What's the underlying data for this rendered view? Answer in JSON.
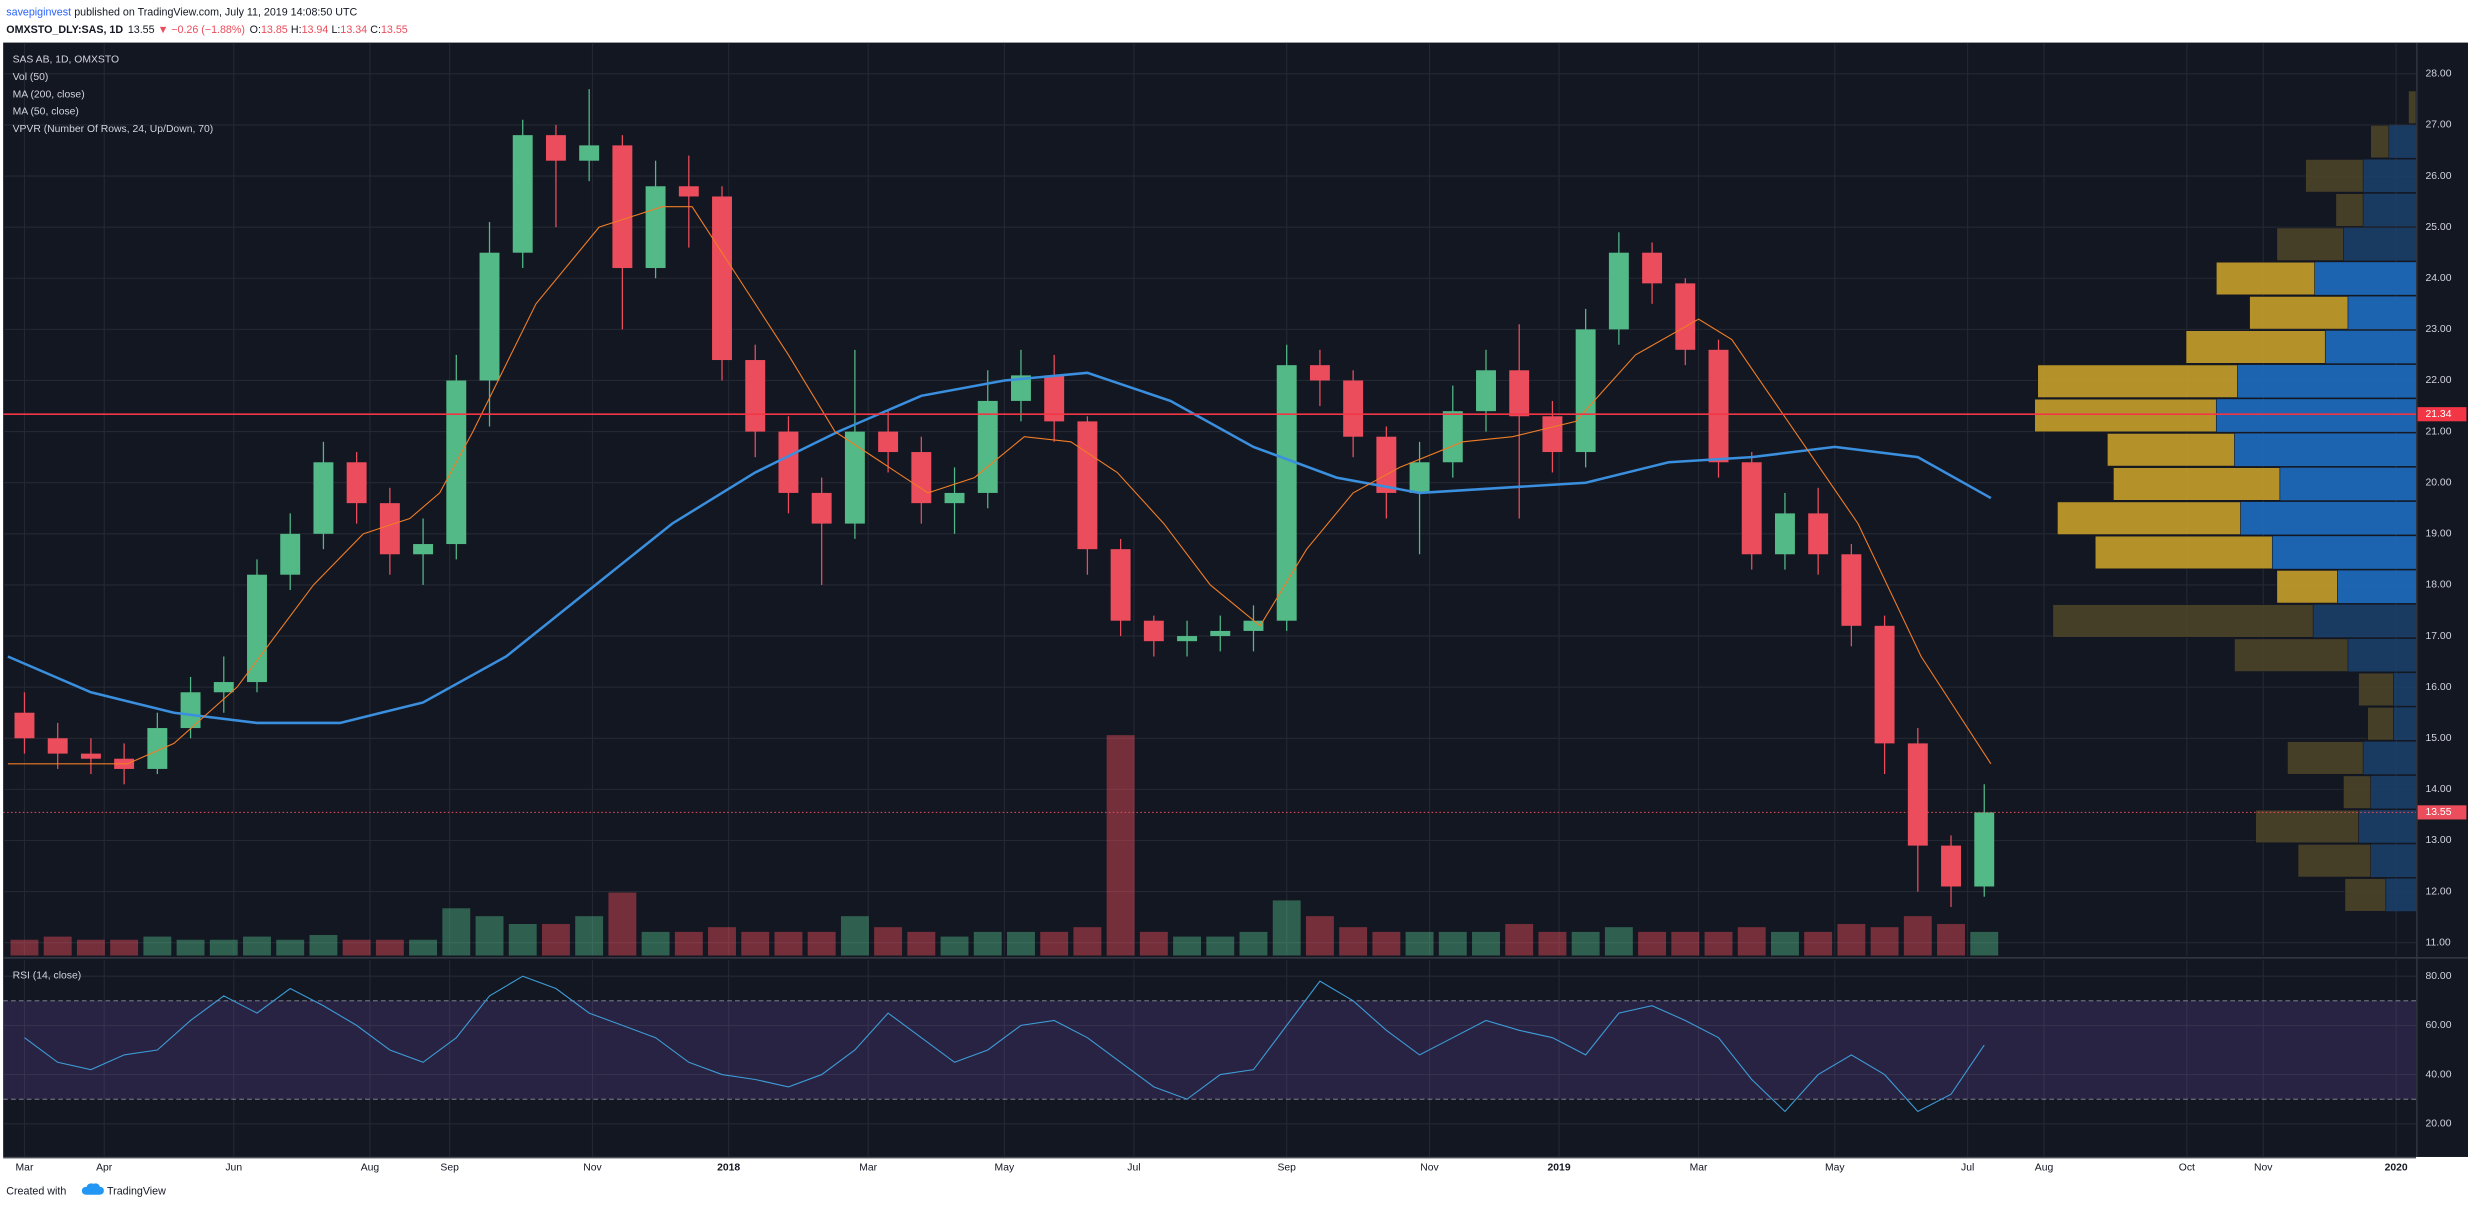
{
  "header": {
    "author": "savepiginvest",
    "published": "published on TradingView.com, July 11, 2019 14:08:50 UTC",
    "symbol": "OMXSTO_DLY:SAS, 1D",
    "last": "13.55",
    "change": "▼ −0.26 (−1.88%)",
    "o_label": "O:",
    "o": "13.85",
    "h_label": "H:",
    "h": "13.94",
    "l_label": "L:",
    "l": "13.34",
    "c_label": "C:",
    "c": "13.55"
  },
  "chart_data": {
    "type": "candlestick",
    "title": "SAS AB, 1D, OMXSTO",
    "x": [
      5,
      15,
      25,
      35,
      45,
      55,
      65,
      75,
      85,
      95,
      105,
      115,
      125,
      135,
      145,
      155,
      165,
      175,
      185,
      195,
      205,
      215,
      225,
      235,
      245,
      255,
      265,
      275,
      285,
      295,
      305,
      315,
      325,
      335,
      345,
      355,
      365,
      375,
      385,
      395,
      405,
      415,
      425,
      435,
      445,
      455,
      465,
      475,
      485,
      495,
      505,
      515,
      525,
      535,
      545,
      555,
      565,
      575,
      585,
      595
    ],
    "open": [
      15.5,
      15.0,
      14.7,
      14.6,
      14.4,
      15.2,
      15.9,
      16.1,
      18.2,
      19.0,
      20.4,
      19.6,
      18.6,
      18.8,
      22.0,
      24.5,
      26.8,
      26.3,
      26.6,
      24.2,
      25.8,
      25.6,
      22.4,
      21.0,
      19.8,
      19.2,
      21.0,
      20.6,
      19.6,
      19.8,
      21.6,
      22.1,
      21.2,
      18.7,
      17.3,
      16.9,
      17.0,
      17.1,
      17.3,
      22.3,
      22.0,
      20.9,
      19.8,
      20.4,
      21.4,
      22.2,
      21.3,
      20.6,
      23.0,
      24.5,
      23.9,
      22.6,
      20.4,
      18.6,
      19.4,
      18.6,
      17.2,
      14.9,
      12.9,
      12.1
    ],
    "high": [
      15.9,
      15.3,
      15.0,
      14.9,
      15.5,
      16.2,
      16.6,
      18.5,
      19.4,
      20.8,
      20.6,
      19.9,
      19.3,
      22.5,
      25.1,
      27.1,
      27.0,
      27.7,
      26.8,
      26.3,
      26.4,
      25.8,
      22.7,
      21.3,
      20.1,
      22.6,
      21.4,
      20.9,
      20.3,
      22.2,
      22.6,
      22.5,
      21.3,
      18.9,
      17.4,
      17.3,
      17.4,
      17.6,
      22.7,
      22.6,
      22.2,
      21.1,
      20.8,
      21.9,
      22.6,
      23.1,
      21.6,
      23.4,
      24.9,
      24.7,
      24.0,
      22.8,
      20.6,
      19.8,
      19.9,
      18.8,
      17.4,
      15.2,
      13.1,
      14.1
    ],
    "low": [
      14.7,
      14.4,
      14.3,
      14.1,
      14.3,
      15.0,
      15.5,
      15.9,
      17.9,
      18.7,
      19.2,
      18.2,
      18.0,
      18.5,
      21.1,
      24.2,
      25.0,
      25.9,
      23.0,
      24.0,
      24.6,
      22.0,
      20.5,
      19.4,
      18.0,
      18.9,
      20.2,
      19.2,
      19.0,
      19.5,
      21.2,
      20.8,
      18.2,
      17.0,
      16.6,
      16.6,
      16.7,
      16.7,
      17.1,
      21.5,
      20.5,
      19.3,
      18.6,
      20.1,
      21.0,
      19.3,
      20.2,
      20.3,
      22.7,
      23.5,
      22.3,
      20.1,
      18.3,
      18.3,
      18.2,
      16.8,
      14.3,
      12.0,
      11.7,
      11.9
    ],
    "close": [
      15.0,
      14.7,
      14.6,
      14.4,
      15.2,
      15.9,
      16.1,
      18.2,
      19.0,
      20.4,
      19.6,
      18.6,
      18.8,
      22.0,
      24.5,
      26.8,
      26.3,
      26.6,
      24.2,
      25.8,
      25.6,
      22.4,
      21.0,
      19.8,
      19.2,
      21.0,
      20.6,
      19.6,
      19.8,
      21.6,
      22.1,
      21.2,
      18.7,
      17.3,
      16.9,
      17.0,
      17.1,
      17.3,
      22.3,
      22.0,
      20.9,
      19.8,
      20.4,
      21.4,
      22.2,
      21.3,
      20.6,
      23.0,
      24.5,
      23.9,
      22.6,
      20.4,
      18.6,
      19.4,
      18.6,
      17.2,
      14.9,
      12.9,
      12.1,
      13.55
    ],
    "up_color": "#53b987",
    "down_color": "#eb4d5c",
    "xlim": [
      0,
      725
    ],
    "xticks": [
      {
        "value": 5,
        "label": "Mar"
      },
      {
        "value": 29,
        "label": "Apr"
      },
      {
        "value": 68,
        "label": "Jun"
      },
      {
        "value": 109,
        "label": "Aug"
      },
      {
        "value": 133,
        "label": "Sep"
      },
      {
        "value": 176,
        "label": "Nov"
      },
      {
        "value": 217,
        "label": "2018"
      },
      {
        "value": 259,
        "label": "Mar"
      },
      {
        "value": 300,
        "label": "May"
      },
      {
        "value": 339,
        "label": "Jul"
      },
      {
        "value": 385,
        "label": "Sep"
      },
      {
        "value": 428,
        "label": "Nov"
      },
      {
        "value": 467,
        "label": "2019"
      },
      {
        "value": 509,
        "label": "Mar"
      },
      {
        "value": 550,
        "label": "May"
      },
      {
        "value": 590,
        "label": "Jul"
      },
      {
        "value": 613,
        "label": "Aug"
      },
      {
        "value": 656,
        "label": "Oct"
      },
      {
        "value": 679,
        "label": "Nov"
      },
      {
        "value": 719,
        "label": "2020"
      }
    ],
    "ylim": [
      10.75,
      28.58
    ],
    "yticks": [
      {
        "value": 11,
        "label": "11.00"
      },
      {
        "value": 12,
        "label": "12.00"
      },
      {
        "value": 13,
        "label": "13.00"
      },
      {
        "value": 14,
        "label": "14.00"
      },
      {
        "value": 15,
        "label": "15.00"
      },
      {
        "value": 16,
        "label": "16.00"
      },
      {
        "value": 17,
        "label": "17.00"
      },
      {
        "value": 18,
        "label": "18.00"
      },
      {
        "value": 19,
        "label": "19.00"
      },
      {
        "value": 20,
        "label": "20.00"
      },
      {
        "value": 21,
        "label": "21.00"
      },
      {
        "value": 22,
        "label": "22.00"
      },
      {
        "value": 23,
        "label": "23.00"
      },
      {
        "value": 24,
        "label": "24.00"
      },
      {
        "value": 25,
        "label": "25.00"
      },
      {
        "value": 26,
        "label": "26.00"
      },
      {
        "value": 27,
        "label": "27.00"
      },
      {
        "value": 28,
        "label": "28.00"
      }
    ],
    "grid": true,
    "volume": {
      "name": "Vol (50)",
      "vlim": [
        0,
        16
      ],
      "values": [
        1,
        1.2,
        1,
        1,
        1.2,
        1,
        1,
        1.2,
        1,
        1.3,
        1,
        1,
        1,
        3,
        2.5,
        2,
        2,
        2.5,
        4,
        1.5,
        1.5,
        1.8,
        1.5,
        1.5,
        1.5,
        2.5,
        1.8,
        1.5,
        1.2,
        1.5,
        1.5,
        1.5,
        1.8,
        14,
        1.5,
        1.2,
        1.2,
        1.5,
        3.5,
        2.5,
        1.8,
        1.5,
        1.5,
        1.5,
        1.5,
        2,
        1.5,
        1.5,
        1.8,
        1.5,
        1.5,
        1.5,
        1.8,
        1.5,
        1.5,
        2,
        1.8,
        2.5,
        2,
        1.5
      ]
    },
    "series": [
      {
        "name": "MA (200, close)",
        "color": "#3a8fde",
        "x": [
          0,
          25,
          50,
          75,
          100,
          125,
          150,
          175,
          200,
          225,
          250,
          275,
          300,
          325,
          350,
          375,
          400,
          425,
          450,
          475,
          500,
          525,
          550,
          575,
          597
        ],
        "values": [
          16.6,
          15.9,
          15.5,
          15.3,
          15.3,
          15.7,
          16.6,
          17.9,
          19.2,
          20.2,
          21.0,
          21.7,
          22.0,
          22.15,
          21.6,
          20.7,
          20.1,
          19.8,
          19.9,
          20.0,
          20.4,
          20.5,
          20.7,
          20.5,
          19.7
        ]
      },
      {
        "name": "MA (50, close)",
        "color": "#f07d26",
        "x": [
          0,
          36,
          50,
          69,
          92,
          107,
          121,
          130,
          140,
          159,
          178,
          197,
          206,
          220,
          235,
          249,
          263,
          277,
          291,
          306,
          320,
          334,
          348,
          362,
          377,
          391,
          405,
          419,
          438,
          453,
          472,
          490,
          509,
          519,
          538,
          557,
          576,
          597
        ],
        "values": [
          14.5,
          14.5,
          14.9,
          16.0,
          18.0,
          19.0,
          19.3,
          19.8,
          21.0,
          23.5,
          25.0,
          25.4,
          25.4,
          24.0,
          22.5,
          21.0,
          20.4,
          19.8,
          20.1,
          20.9,
          20.8,
          20.2,
          19.2,
          18.0,
          17.2,
          18.7,
          19.8,
          20.3,
          20.8,
          20.9,
          21.2,
          22.5,
          23.2,
          22.8,
          21.0,
          19.2,
          16.6,
          14.5
        ]
      }
    ],
    "volume_profile": {
      "name": "VPVR (Number Of Rows, 24, Up/Down, 70)",
      "bins": [
        11.6,
        12.27,
        12.94,
        13.61,
        14.28,
        14.95,
        15.62,
        16.29,
        16.96,
        17.63,
        18.3,
        18.97,
        19.64,
        20.31,
        20.98,
        21.65,
        22.32,
        22.99,
        23.66,
        24.33,
        25.0,
        25.67,
        26.34,
        27.01,
        27.68
      ],
      "up": [
        20,
        30,
        38,
        30,
        35,
        15,
        15,
        45,
        68,
        52,
        95,
        116,
        90,
        120,
        132,
        118,
        60,
        45,
        67,
        48,
        35,
        35,
        18,
        0
      ],
      "down": [
        27,
        48,
        68,
        18,
        50,
        17,
        23,
        75,
        172,
        40,
        117,
        121,
        110,
        84,
        120,
        132,
        92,
        65,
        65,
        44,
        18,
        38,
        12,
        5
      ],
      "value_area": [
        false,
        false,
        false,
        false,
        false,
        false,
        false,
        false,
        false,
        true,
        true,
        true,
        true,
        true,
        true,
        true,
        true,
        true,
        true,
        false,
        false,
        false,
        false,
        false
      ],
      "xlim": [
        0,
        260
      ],
      "up_color": "#1e6cc0",
      "down_color": "#c79f2a",
      "outside_up_color": "#1c3f68",
      "outside_down_color": "#4d4428"
    },
    "hlines": [
      {
        "value": 21.34,
        "label": "21.34",
        "color": "#f23645"
      }
    ],
    "last_price": {
      "value": 13.55,
      "label": "13.55",
      "color": "#eb4d5c"
    },
    "rsi": {
      "name": "RSI (14, close)",
      "color": "#3d9bd6",
      "values": [
        55,
        45,
        42,
        48,
        50,
        62,
        72,
        65,
        75,
        68,
        60,
        50,
        45,
        55,
        72,
        80,
        75,
        65,
        60,
        55,
        45,
        40,
        38,
        35,
        40,
        50,
        65,
        55,
        45,
        50,
        60,
        62,
        55,
        45,
        35,
        30,
        40,
        42,
        60,
        78,
        70,
        58,
        48,
        55,
        62,
        58,
        55,
        48,
        65,
        68,
        62,
        55,
        38,
        25,
        40,
        48,
        40,
        25,
        32,
        52
      ],
      "ylim": [
        6.5,
        86.5
      ],
      "yticks": [
        {
          "value": 20,
          "label": "20.00"
        },
        {
          "value": 40,
          "label": "40.00"
        },
        {
          "value": 60,
          "label": "60.00"
        },
        {
          "value": 80,
          "label": "80.00"
        }
      ],
      "bands": [
        30,
        70
      ]
    }
  },
  "footer": {
    "created": "Created with",
    "brand": "TradingView"
  }
}
